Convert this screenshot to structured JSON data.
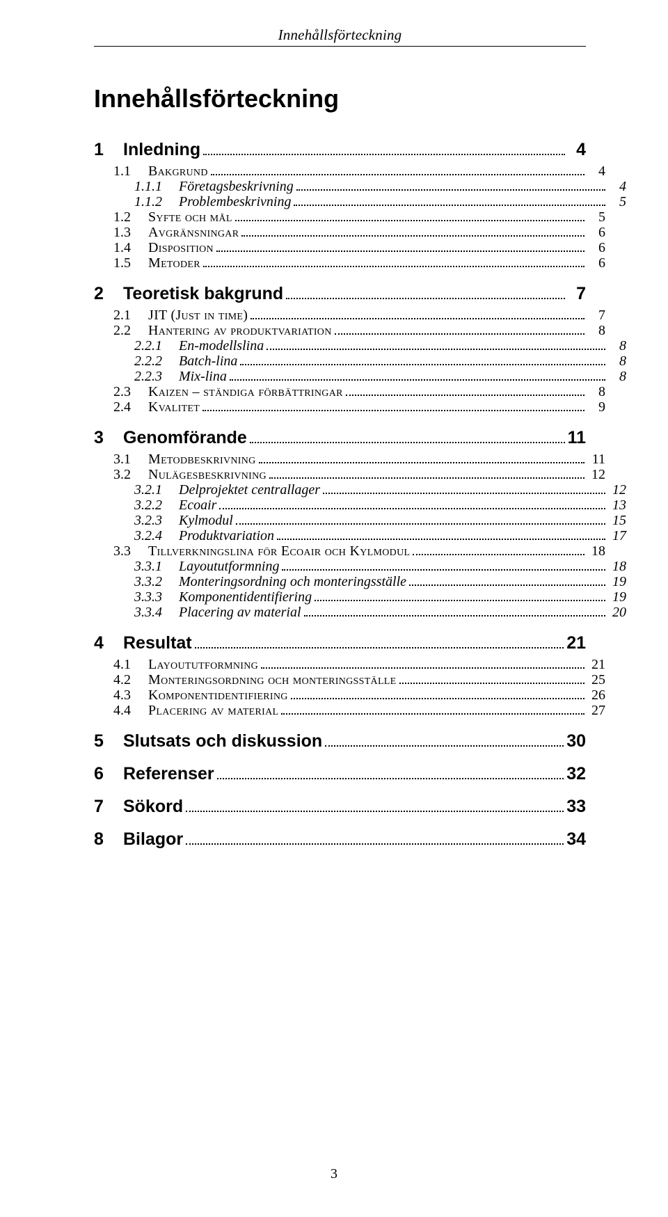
{
  "running_head": "Innehållsförteckning",
  "doc_title": "Innehållsförteckning",
  "page_number": "3",
  "font": {
    "body_family": "Times New Roman",
    "heading_family": "Gill Sans",
    "title_size_pt": 36,
    "l1_size_pt": 25,
    "l2_size_pt": 20,
    "l3_size_pt": 20
  },
  "colors": {
    "text": "#000000",
    "background": "#ffffff",
    "rule": "#000000",
    "leader": "#000000"
  },
  "toc": [
    {
      "level": 1,
      "num": "1",
      "label": "Inledning",
      "page": "4"
    },
    {
      "level": 2,
      "num": "1.1",
      "label": "Bakgrund",
      "page": "4"
    },
    {
      "level": 3,
      "num": "1.1.1",
      "label": "Företagsbeskrivning",
      "page": "4"
    },
    {
      "level": 3,
      "num": "1.1.2",
      "label": "Problembeskrivning",
      "page": "5"
    },
    {
      "level": 2,
      "num": "1.2",
      "label": "Syfte och mål",
      "page": "5"
    },
    {
      "level": 2,
      "num": "1.3",
      "label": "Avgränsningar",
      "page": "6"
    },
    {
      "level": 2,
      "num": "1.4",
      "label": "Disposition",
      "page": "6"
    },
    {
      "level": 2,
      "num": "1.5",
      "label": "Metoder",
      "page": "6"
    },
    {
      "level": 1,
      "num": "2",
      "label": "Teoretisk bakgrund",
      "page": "7"
    },
    {
      "level": 2,
      "num": "2.1",
      "label": "JIT (Just in time)",
      "page": "7"
    },
    {
      "level": 2,
      "num": "2.2",
      "label": "Hantering av produktvariation",
      "page": "8"
    },
    {
      "level": 3,
      "num": "2.2.1",
      "label": "En-modellslina",
      "page": "8"
    },
    {
      "level": 3,
      "num": "2.2.2",
      "label": "Batch-lina",
      "page": "8"
    },
    {
      "level": 3,
      "num": "2.2.3",
      "label": "Mix-lina",
      "page": "8"
    },
    {
      "level": 2,
      "num": "2.3",
      "label": "Kaizen – ständiga förbättringar",
      "page": "8"
    },
    {
      "level": 2,
      "num": "2.4",
      "label": "Kvalitet",
      "page": "9"
    },
    {
      "level": 1,
      "num": "3",
      "label": "Genomförande",
      "page": "11"
    },
    {
      "level": 2,
      "num": "3.1",
      "label": "Metodbeskrivning",
      "page": "11"
    },
    {
      "level": 2,
      "num": "3.2",
      "label": "Nulägesbeskrivning",
      "page": "12"
    },
    {
      "level": 3,
      "num": "3.2.1",
      "label": "Delprojektet centrallager",
      "page": "12"
    },
    {
      "level": 3,
      "num": "3.2.2",
      "label": "Ecoair",
      "page": "13"
    },
    {
      "level": 3,
      "num": "3.2.3",
      "label": "Kylmodul",
      "page": "15"
    },
    {
      "level": 3,
      "num": "3.2.4",
      "label": "Produktvariation",
      "page": "17"
    },
    {
      "level": 2,
      "num": "3.3",
      "label": "Tillverkningslina för Ecoair och Kylmodul",
      "page": "18"
    },
    {
      "level": 3,
      "num": "3.3.1",
      "label": "Layoututformning",
      "page": "18"
    },
    {
      "level": 3,
      "num": "3.3.2",
      "label": "Monteringsordning och monteringsställe",
      "page": "19"
    },
    {
      "level": 3,
      "num": "3.3.3",
      "label": "Komponentidentifiering",
      "page": "19"
    },
    {
      "level": 3,
      "num": "3.3.4",
      "label": "Placering av material",
      "page": "20"
    },
    {
      "level": 1,
      "num": "4",
      "label": "Resultat",
      "page": "21"
    },
    {
      "level": 2,
      "num": "4.1",
      "label": "Layoututformning",
      "page": "21"
    },
    {
      "level": 2,
      "num": "4.2",
      "label": "Monteringsordning och monteringsställe",
      "page": "25"
    },
    {
      "level": 2,
      "num": "4.3",
      "label": "Komponentidentifiering",
      "page": "26"
    },
    {
      "level": 2,
      "num": "4.4",
      "label": "Placering av material",
      "page": "27"
    },
    {
      "level": 1,
      "num": "5",
      "label": "Slutsats och diskussion",
      "page": "30"
    },
    {
      "level": 1,
      "num": "6",
      "label": "Referenser",
      "page": "32"
    },
    {
      "level": 1,
      "num": "7",
      "label": "Sökord",
      "page": "33"
    },
    {
      "level": 1,
      "num": "8",
      "label": "Bilagor",
      "page": "34"
    }
  ]
}
